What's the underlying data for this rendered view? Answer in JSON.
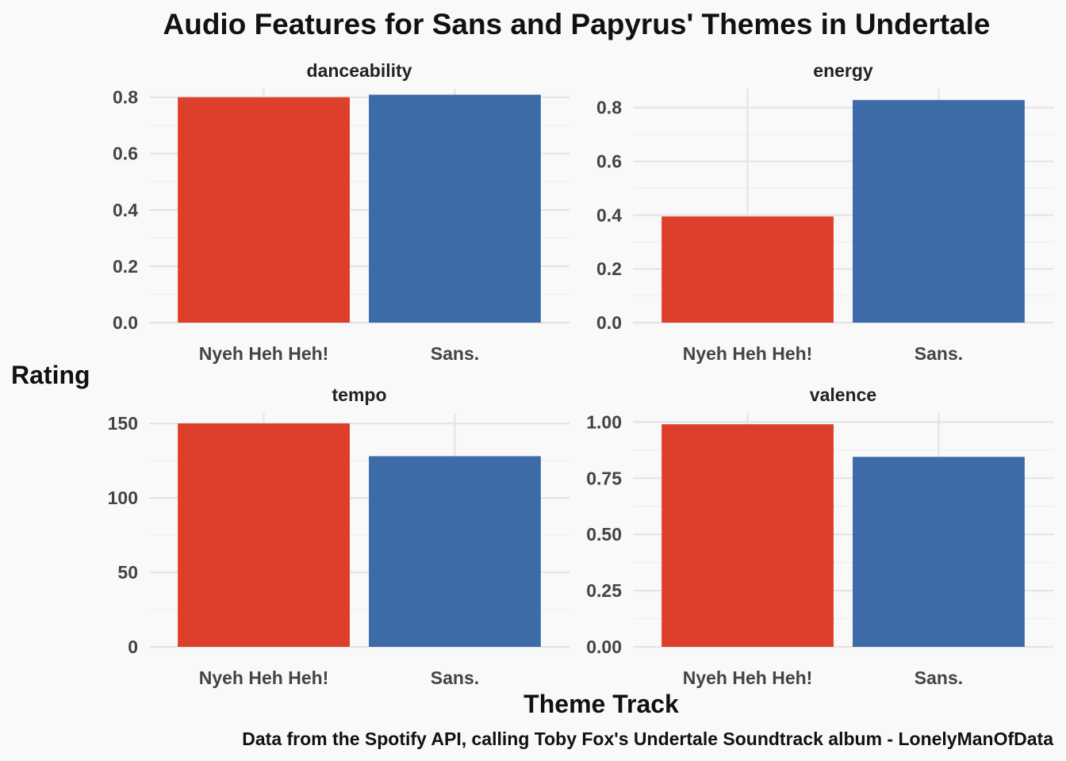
{
  "chart_data": {
    "type": "bar",
    "title": "Audio Features for Sans and Papyrus' Themes in Undertale",
    "xlabel": "Theme Track",
    "ylabel": "Rating",
    "caption": "Data from the Spotify API, calling Toby Fox's Undertale Soundtrack album - LonelyManOfData",
    "categories": [
      "Nyeh Heh Heh!",
      "Sans."
    ],
    "colors": [
      "#de3f2a",
      "#3d6ba8"
    ],
    "grid": true,
    "legend": "none",
    "facets": [
      {
        "name": "danceability",
        "values": [
          0.8,
          0.809
        ],
        "ylim": [
          0,
          0.83
        ],
        "ticks": [
          0.0,
          0.2,
          0.4,
          0.6,
          0.8
        ],
        "tick_labels": [
          "0.0",
          "0.2",
          "0.4",
          "0.6",
          "0.8"
        ]
      },
      {
        "name": "energy",
        "values": [
          0.395,
          0.828
        ],
        "ylim": [
          0,
          0.87
        ],
        "ticks": [
          0.0,
          0.2,
          0.4,
          0.6,
          0.8
        ],
        "tick_labels": [
          "0.0",
          "0.2",
          "0.4",
          "0.6",
          "0.8"
        ]
      },
      {
        "name": "tempo",
        "values": [
          150,
          128
        ],
        "ylim": [
          0,
          157
        ],
        "ticks": [
          0,
          50,
          100,
          150
        ],
        "tick_labels": [
          "0",
          "50",
          "100",
          "150"
        ]
      },
      {
        "name": "valence",
        "values": [
          0.99,
          0.845
        ],
        "ylim": [
          0,
          1.04
        ],
        "ticks": [
          0.0,
          0.25,
          0.5,
          0.75,
          1.0
        ],
        "tick_labels": [
          "0.00",
          "0.25",
          "0.50",
          "0.75",
          "1.00"
        ]
      }
    ]
  }
}
